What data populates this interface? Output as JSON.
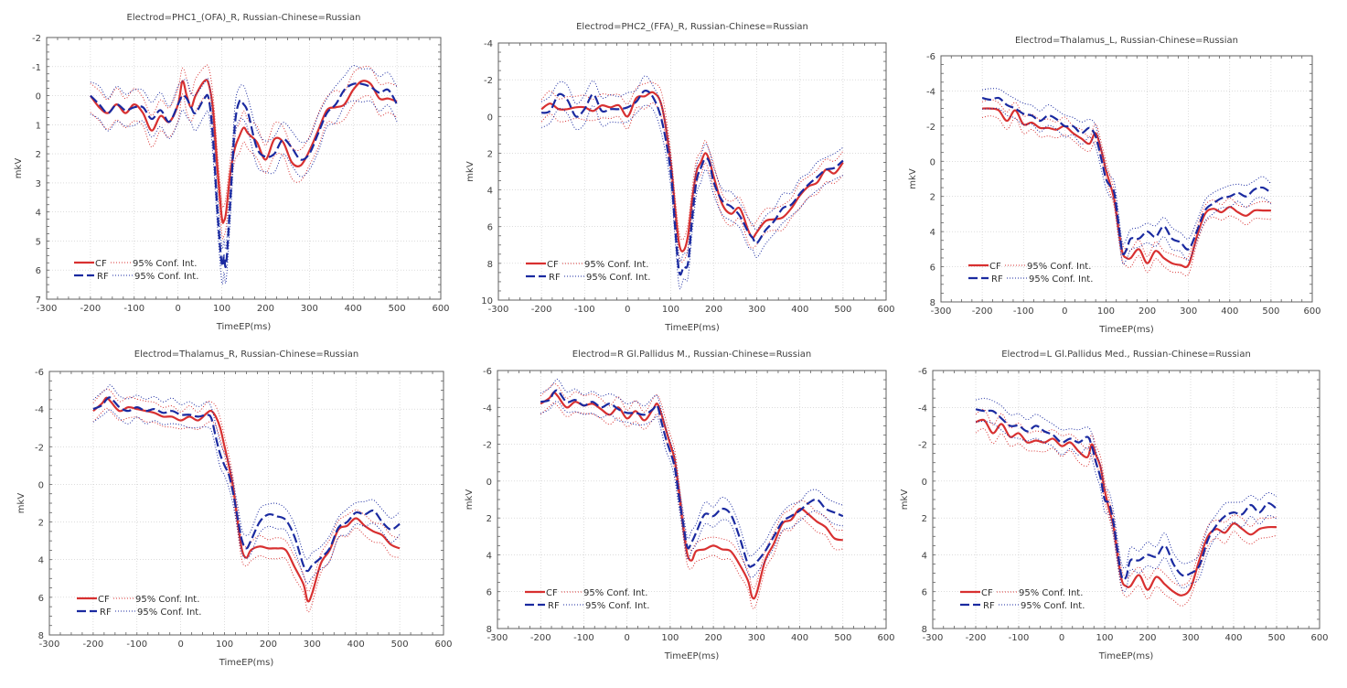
{
  "chart_data": [
    {
      "type": "line",
      "title": "Electrod=PHC1_(OFA)_R, Russian-Chinese=Russian",
      "xlabel": "TimeEP(ms)",
      "ylabel": "mkV",
      "xlim": [
        -300,
        600
      ],
      "ylim": [
        -2,
        7
      ],
      "y_inverted": true,
      "x_ticks": [
        -300,
        -200,
        -100,
        0,
        100,
        200,
        300,
        400,
        500,
        600
      ],
      "y_ticks": [
        -2,
        -1,
        0,
        1,
        2,
        3,
        4,
        5,
        6,
        7
      ],
      "grid": true,
      "legend": {
        "position": "bottom-left",
        "entries": [
          "CF",
          "95% Conf. Int.",
          "RF",
          "95% Conf. Int."
        ]
      },
      "x": [
        -200,
        -180,
        -160,
        -140,
        -120,
        -100,
        -80,
        -60,
        -40,
        -20,
        0,
        10,
        20,
        30,
        40,
        60,
        70,
        80,
        90,
        100,
        105,
        110,
        120,
        130,
        140,
        150,
        160,
        180,
        200,
        220,
        240,
        260,
        280,
        300,
        320,
        340,
        360,
        380,
        400,
        420,
        440,
        460,
        480,
        500
      ],
      "series": [
        {
          "name": "CF",
          "values": [
            0.0,
            0.4,
            0.6,
            0.3,
            0.6,
            0.3,
            0.6,
            1.2,
            0.7,
            0.9,
            0.3,
            -0.5,
            0.0,
            0.4,
            0.0,
            -0.5,
            -0.4,
            0.5,
            2.5,
            4.2,
            4.3,
            4.0,
            2.6,
            1.8,
            1.4,
            1.1,
            1.3,
            1.6,
            2.2,
            1.5,
            1.6,
            2.3,
            2.4,
            1.9,
            1.2,
            0.5,
            0.4,
            0.3,
            -0.2,
            -0.5,
            -0.4,
            0.1,
            0.1,
            0.2
          ],
          "ci": 0.5,
          "color": "#d83030",
          "style": "solid"
        },
        {
          "name": "RF",
          "values": [
            0.0,
            0.3,
            0.6,
            0.3,
            0.5,
            0.4,
            0.4,
            0.8,
            0.5,
            0.9,
            0.3,
            0.0,
            0.1,
            0.4,
            0.6,
            0.1,
            0.1,
            1.5,
            4.0,
            5.8,
            5.5,
            5.8,
            3.5,
            1.0,
            0.2,
            0.3,
            0.6,
            1.8,
            2.1,
            2.0,
            1.5,
            1.8,
            2.2,
            2.0,
            1.3,
            0.6,
            0.3,
            -0.2,
            -0.4,
            -0.4,
            -0.3,
            -0.1,
            -0.2,
            0.3
          ],
          "ci": 0.55,
          "color": "#1a2aa0",
          "style": "dashed"
        }
      ]
    },
    {
      "type": "line",
      "title": "Electrod=PHC2_(FFA)_R, Russian-Chinese=Russian",
      "xlabel": "TimeEP(ms)",
      "ylabel": "mkV",
      "xlim": [
        -300,
        600
      ],
      "ylim": [
        -4,
        10
      ],
      "y_inverted": true,
      "x_ticks": [
        -300,
        -200,
        -100,
        0,
        100,
        200,
        300,
        400,
        500,
        600
      ],
      "y_ticks": [
        -4,
        -2,
        0,
        2,
        4,
        6,
        8,
        10
      ],
      "grid": true,
      "legend": {
        "position": "bottom-left",
        "entries": [
          "CF",
          "95% Conf. Int.",
          "RF",
          "95% Conf. Int."
        ]
      },
      "x": [
        -200,
        -180,
        -160,
        -140,
        -120,
        -100,
        -80,
        -60,
        -40,
        -20,
        0,
        20,
        40,
        60,
        80,
        100,
        110,
        120,
        130,
        140,
        150,
        160,
        170,
        180,
        190,
        200,
        220,
        240,
        260,
        280,
        290,
        300,
        320,
        340,
        360,
        380,
        400,
        420,
        440,
        460,
        480,
        500
      ],
      "series": [
        {
          "name": "CF",
          "values": [
            -0.4,
            -0.7,
            -0.4,
            -0.4,
            -0.5,
            -0.5,
            -0.3,
            -0.6,
            -0.5,
            -0.6,
            0.0,
            -1.0,
            -1.1,
            -1.3,
            -0.5,
            2.5,
            5.0,
            7.0,
            7.3,
            6.5,
            4.5,
            3.0,
            2.5,
            2.0,
            2.4,
            3.3,
            4.8,
            5.3,
            5.0,
            6.2,
            6.6,
            6.3,
            5.7,
            5.6,
            5.5,
            5.0,
            4.3,
            3.8,
            3.6,
            2.9,
            3.1,
            2.5
          ],
          "ci": 0.6,
          "color": "#d83030",
          "style": "solid"
        },
        {
          "name": "RF",
          "values": [
            -0.2,
            -0.3,
            -1.2,
            -0.9,
            0.0,
            -0.4,
            -1.2,
            -0.3,
            -0.4,
            -0.4,
            -0.5,
            -0.8,
            -1.4,
            -1.0,
            0.3,
            3.0,
            6.0,
            8.5,
            8.2,
            8.0,
            5.5,
            3.5,
            2.8,
            2.3,
            2.5,
            3.6,
            4.6,
            4.9,
            5.4,
            6.3,
            6.6,
            6.9,
            6.2,
            5.7,
            5.0,
            4.8,
            4.2,
            3.7,
            3.3,
            2.9,
            2.8,
            2.4
          ],
          "ci": 0.7,
          "color": "#1a2aa0",
          "style": "dashed"
        }
      ]
    },
    {
      "type": "line",
      "title": "Electrod=Thalamus_L, Russian-Chinese=Russian",
      "xlabel": "TimeEP(ms)",
      "ylabel": "mkV",
      "xlim": [
        -300,
        600
      ],
      "ylim": [
        -6,
        8
      ],
      "y_inverted": true,
      "x_ticks": [
        -300,
        -200,
        -100,
        0,
        100,
        200,
        300,
        400,
        500,
        600
      ],
      "y_ticks": [
        -6,
        -4,
        -2,
        0,
        2,
        4,
        6,
        8
      ],
      "grid": true,
      "legend": {
        "position": "bottom-left",
        "entries": [
          "CF",
          "95% Conf. Int.",
          "RF",
          "95% Conf. Int."
        ]
      },
      "x": [
        -200,
        -180,
        -160,
        -140,
        -120,
        -100,
        -80,
        -60,
        -40,
        -20,
        0,
        20,
        40,
        60,
        75,
        90,
        100,
        110,
        120,
        130,
        140,
        150,
        160,
        180,
        200,
        220,
        240,
        260,
        280,
        300,
        320,
        340,
        360,
        380,
        400,
        420,
        440,
        460,
        480,
        500
      ],
      "series": [
        {
          "name": "CF",
          "values": [
            -3.0,
            -3.0,
            -2.9,
            -2.3,
            -2.9,
            -2.1,
            -2.2,
            -1.9,
            -1.9,
            -1.8,
            -2.0,
            -1.6,
            -1.3,
            -1.0,
            -1.6,
            -0.5,
            0.5,
            1.3,
            2.2,
            3.8,
            5.2,
            5.5,
            5.5,
            5.0,
            5.8,
            5.1,
            5.5,
            5.8,
            5.9,
            5.9,
            4.3,
            3.0,
            2.7,
            2.9,
            2.6,
            2.9,
            3.1,
            2.8,
            2.8,
            2.8
          ],
          "ci": 0.45,
          "color": "#d83030",
          "style": "solid"
        },
        {
          "name": "RF",
          "values": [
            -3.6,
            -3.5,
            -3.6,
            -3.2,
            -3.0,
            -2.7,
            -2.6,
            -2.3,
            -2.6,
            -2.4,
            -2.0,
            -2.0,
            -1.6,
            -1.9,
            -1.4,
            0.0,
            1.0,
            1.4,
            1.8,
            3.5,
            5.2,
            5.0,
            4.4,
            4.4,
            4.0,
            4.3,
            3.7,
            4.4,
            4.6,
            5.0,
            4.0,
            2.8,
            2.4,
            2.1,
            2.0,
            1.8,
            2.0,
            1.6,
            1.5,
            1.8
          ],
          "ci": 0.55,
          "color": "#1a2aa0",
          "style": "dashed"
        }
      ]
    },
    {
      "type": "line",
      "title": "Electrod=Thalamus_R, Russian-Chinese=Russian",
      "xlabel": "TimeEP(ms)",
      "ylabel": "mkV",
      "xlim": [
        -300,
        600
      ],
      "ylim": [
        -6,
        8
      ],
      "y_inverted": true,
      "x_ticks": [
        -300,
        -200,
        -100,
        0,
        100,
        200,
        300,
        400,
        500,
        600
      ],
      "y_ticks": [
        -6,
        -4,
        -2,
        0,
        2,
        4,
        6,
        8
      ],
      "grid": true,
      "legend": {
        "position": "bottom-left",
        "entries": [
          "CF",
          "95% Conf. Int.",
          "RF",
          "95% Conf. Int."
        ]
      },
      "x": [
        -200,
        -180,
        -170,
        -160,
        -140,
        -120,
        -100,
        -80,
        -60,
        -40,
        -20,
        0,
        20,
        40,
        60,
        70,
        80,
        90,
        100,
        110,
        120,
        130,
        140,
        150,
        160,
        180,
        200,
        220,
        240,
        260,
        280,
        290,
        300,
        320,
        340,
        360,
        380,
        400,
        420,
        440,
        460,
        480,
        500
      ],
      "series": [
        {
          "name": "CF",
          "values": [
            -3.9,
            -4.3,
            -4.6,
            -4.4,
            -3.9,
            -4.1,
            -4.0,
            -3.9,
            -3.8,
            -3.6,
            -3.6,
            -3.4,
            -3.6,
            -3.4,
            -3.8,
            -3.9,
            -3.6,
            -3.0,
            -2.0,
            -1.0,
            0.2,
            2.0,
            3.5,
            3.9,
            3.5,
            3.3,
            3.4,
            3.4,
            3.5,
            4.4,
            5.3,
            6.2,
            5.8,
            4.2,
            3.5,
            2.4,
            2.2,
            1.8,
            2.2,
            2.5,
            2.7,
            3.2,
            3.4
          ],
          "ci": 0.5,
          "color": "#d83030",
          "style": "solid"
        },
        {
          "name": "RF",
          "values": [
            -4.0,
            -4.2,
            -4.5,
            -4.6,
            -4.1,
            -3.9,
            -4.1,
            -3.9,
            -4.0,
            -3.8,
            -3.9,
            -3.7,
            -3.7,
            -3.6,
            -3.7,
            -3.5,
            -2.5,
            -1.6,
            -1.0,
            -0.5,
            0.5,
            1.8,
            3.0,
            3.4,
            3.0,
            2.0,
            1.6,
            1.7,
            1.9,
            2.8,
            4.3,
            4.6,
            4.3,
            3.9,
            3.4,
            2.3,
            2.0,
            1.5,
            1.6,
            1.4,
            2.0,
            2.4,
            2.1
          ],
          "ci": 0.6,
          "color": "#1a2aa0",
          "style": "dashed"
        }
      ]
    },
    {
      "type": "line",
      "title": "Electrod=R Gl.Pallidus M., Russian-Chinese=Russian",
      "xlabel": "TimeEP(ms)",
      "ylabel": "mkV",
      "xlim": [
        -300,
        600
      ],
      "ylim": [
        -6,
        8
      ],
      "y_inverted": true,
      "x_ticks": [
        -300,
        -200,
        -100,
        0,
        100,
        200,
        300,
        400,
        500,
        600
      ],
      "y_ticks": [
        -6,
        -4,
        -2,
        0,
        2,
        4,
        6,
        8
      ],
      "grid": true,
      "legend": {
        "position": "bottom-left",
        "entries": [
          "CF",
          "95% Conf. Int.",
          "RF",
          "95% Conf. Int."
        ]
      },
      "x": [
        -200,
        -180,
        -170,
        -160,
        -140,
        -120,
        -100,
        -80,
        -60,
        -40,
        -20,
        0,
        20,
        40,
        60,
        70,
        80,
        90,
        100,
        110,
        120,
        130,
        140,
        150,
        160,
        180,
        200,
        220,
        240,
        260,
        280,
        290,
        300,
        320,
        340,
        360,
        380,
        400,
        420,
        440,
        460,
        480,
        500
      ],
      "series": [
        {
          "name": "CF",
          "values": [
            -4.2,
            -4.5,
            -4.8,
            -4.6,
            -4.0,
            -4.3,
            -4.1,
            -4.2,
            -3.9,
            -3.6,
            -4.0,
            -3.4,
            -3.8,
            -3.3,
            -3.9,
            -4.2,
            -3.6,
            -2.8,
            -2.0,
            -1.2,
            0.5,
            2.5,
            4.0,
            4.3,
            3.8,
            3.7,
            3.5,
            3.7,
            3.8,
            4.5,
            5.4,
            6.3,
            6.1,
            4.3,
            3.4,
            2.3,
            2.1,
            1.5,
            1.8,
            2.2,
            2.5,
            3.1,
            3.2
          ],
          "ci": 0.5,
          "color": "#d83030",
          "style": "solid"
        },
        {
          "name": "RF",
          "values": [
            -4.3,
            -4.4,
            -4.8,
            -4.9,
            -4.3,
            -4.4,
            -4.1,
            -4.3,
            -4.0,
            -4.2,
            -3.9,
            -3.7,
            -3.7,
            -3.6,
            -3.9,
            -4.1,
            -3.2,
            -2.3,
            -1.6,
            -0.8,
            0.8,
            2.3,
            3.6,
            3.3,
            2.8,
            1.8,
            1.9,
            1.5,
            1.8,
            3.0,
            4.5,
            4.6,
            4.4,
            3.8,
            3.0,
            2.2,
            1.9,
            1.6,
            1.2,
            1.0,
            1.5,
            1.7,
            1.9
          ],
          "ci": 0.55,
          "color": "#1a2aa0",
          "style": "dashed"
        }
      ]
    },
    {
      "type": "line",
      "title": "Electrod=L Gl.Pallidus Med., Russian-Chinese=Russian",
      "xlabel": "TimeEP(ms)",
      "ylabel": "mkV",
      "xlim": [
        -300,
        600
      ],
      "ylim": [
        -6,
        8
      ],
      "y_inverted": true,
      "x_ticks": [
        -300,
        -200,
        -100,
        0,
        100,
        200,
        300,
        400,
        500,
        600
      ],
      "y_ticks": [
        -6,
        -4,
        -2,
        0,
        2,
        4,
        6,
        8
      ],
      "grid": true,
      "legend": {
        "position": "bottom-left",
        "entries": [
          "CF",
          "95% Conf. Int.",
          "RF",
          "95% Conf. Int."
        ]
      },
      "x": [
        -200,
        -180,
        -160,
        -140,
        -120,
        -100,
        -80,
        -60,
        -40,
        -20,
        0,
        20,
        40,
        60,
        70,
        80,
        90,
        100,
        110,
        120,
        130,
        140,
        150,
        160,
        180,
        200,
        220,
        240,
        260,
        280,
        300,
        320,
        340,
        360,
        380,
        400,
        420,
        440,
        460,
        480,
        500
      ],
      "series": [
        {
          "name": "CF",
          "values": [
            -3.2,
            -3.3,
            -2.6,
            -3.1,
            -2.4,
            -2.6,
            -2.1,
            -2.2,
            -2.1,
            -2.3,
            -1.9,
            -2.1,
            -1.6,
            -1.3,
            -2.0,
            -1.4,
            -0.8,
            0.5,
            1.5,
            2.4,
            4.0,
            5.4,
            5.7,
            5.7,
            5.1,
            5.9,
            5.2,
            5.6,
            6.0,
            6.2,
            5.8,
            4.3,
            3.0,
            2.6,
            2.8,
            2.3,
            2.6,
            2.9,
            2.6,
            2.5,
            2.5
          ],
          "ci": 0.5,
          "color": "#d83030",
          "style": "solid"
        },
        {
          "name": "RF",
          "values": [
            -3.9,
            -3.8,
            -3.8,
            -3.4,
            -3.0,
            -3.0,
            -2.7,
            -3.0,
            -2.7,
            -2.5,
            -2.1,
            -2.3,
            -2.1,
            -2.4,
            -1.9,
            -1.0,
            -0.2,
            1.0,
            1.2,
            2.2,
            3.8,
            5.2,
            5.2,
            4.3,
            4.3,
            4.0,
            4.1,
            3.5,
            4.5,
            5.1,
            5.0,
            4.6,
            3.2,
            2.4,
            1.9,
            1.7,
            1.8,
            1.3,
            1.7,
            1.2,
            1.5
          ],
          "ci": 0.6,
          "color": "#1a2aa0",
          "style": "dashed"
        }
      ]
    }
  ]
}
